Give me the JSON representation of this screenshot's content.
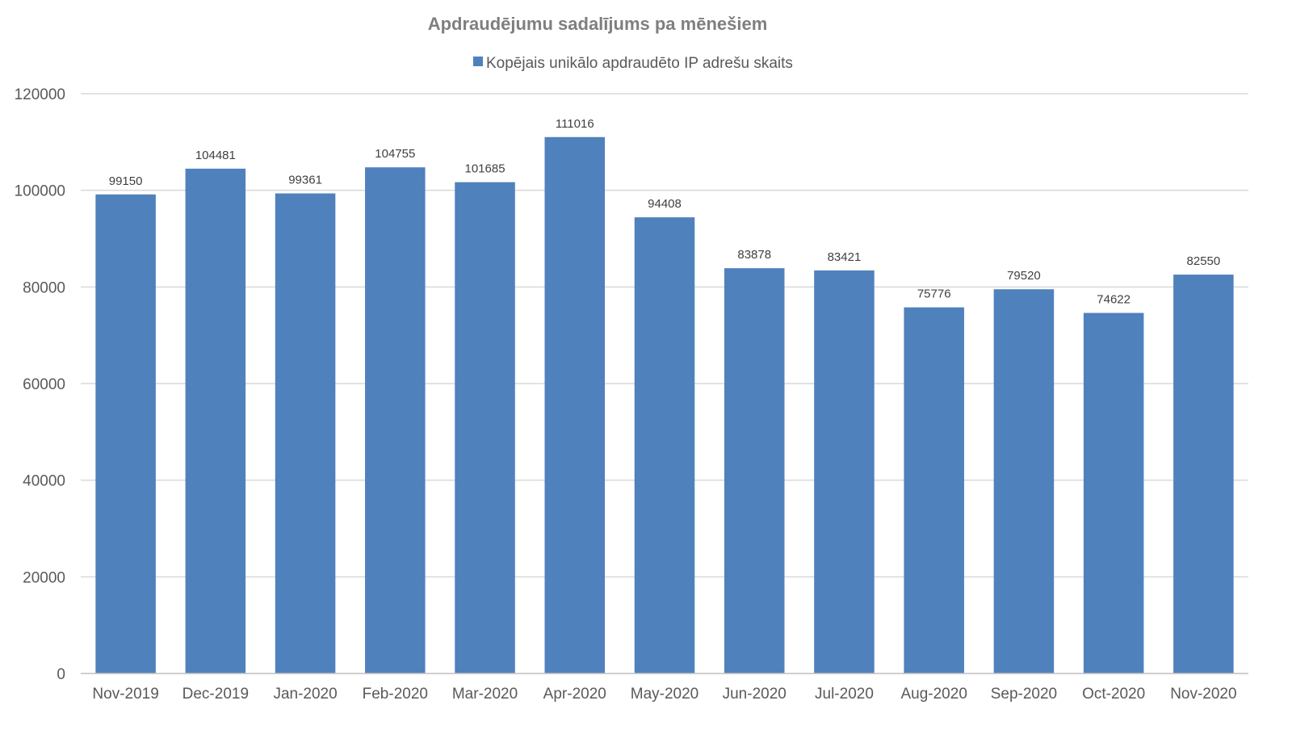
{
  "chart_data": {
    "type": "bar",
    "title": "Apdraudējumu sadalījums pa mēnešiem",
    "xlabel": "",
    "ylabel": "",
    "categories": [
      "Nov-2019",
      "Dec-2019",
      "Jan-2020",
      "Feb-2020",
      "Mar-2020",
      "Apr-2020",
      "May-2020",
      "Jun-2020",
      "Jul-2020",
      "Aug-2020",
      "Sep-2020",
      "Oct-2020",
      "Nov-2020"
    ],
    "series": [
      {
        "name": "Kopējais unikālo apdraudēto IP adrešu skaits",
        "values": [
          99150,
          104481,
          99361,
          104755,
          101685,
          111016,
          94408,
          83878,
          83421,
          75776,
          79520,
          74622,
          82550
        ],
        "color": "#4f81bd"
      }
    ],
    "ylim": [
      0,
      120000
    ],
    "yticks": [
      "0",
      "20000",
      "40000",
      "60000",
      "80000",
      "100000",
      "120000"
    ],
    "grid": true,
    "legend_position": "top-center",
    "data_labels": [
      "99150",
      "104481",
      "99361",
      "104755",
      "101685",
      "111016",
      "94408",
      "83878",
      "83421",
      "75776",
      "79520",
      "74622",
      "82550"
    ]
  },
  "colors": {
    "bar": "#4f81bd",
    "grid": "#d9d9d9",
    "axis": "#bfbfbf",
    "title": "#7f7f7f",
    "text": "#595959"
  }
}
